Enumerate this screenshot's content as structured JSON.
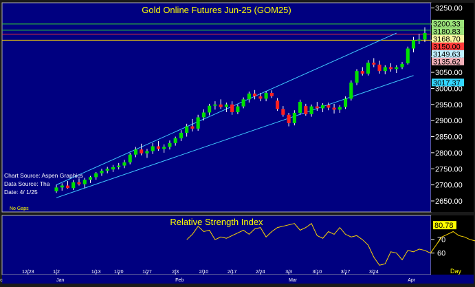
{
  "chart_data": {
    "type": "candlestick",
    "title": "Gold Online Futures Jun-25 (GOM25)",
    "source_lines": [
      "Chart Source: Aspen Graphics",
      "Data Source: Tha",
      "Date:   4/ 1/25"
    ],
    "gaps_label": "No Gaps",
    "period_label": "Day",
    "ylim": [
      2620,
      3262
    ],
    "y_ticks": [
      2650,
      2700,
      2750,
      2800,
      2850,
      2900,
      2950,
      3000,
      3050,
      3100,
      3150,
      3200,
      3250
    ],
    "y_tick_labels": [
      "2650.00",
      "2700.00",
      "2750.00",
      "2800.00",
      "2850.00",
      "2900.00",
      "2950.00",
      "3000.00",
      "3050.00",
      "3100.00",
      "3150.00",
      "3200.00",
      "3250.00"
    ],
    "x_date_labels": [
      "12/23",
      "1/2",
      "1/13",
      "1/20",
      "1/27",
      "2/3",
      "2/10",
      "2/17",
      "2/24",
      "3/3",
      "3/10",
      "3/17",
      "3/24"
    ],
    "x_month_labels": [
      "Dec",
      "Jan",
      "Feb",
      "Mar",
      "Apr"
    ],
    "price_labels": [
      {
        "text": "3200.33",
        "value": 3200.33,
        "bg": "#9be37a"
      },
      {
        "text": "3180.83",
        "value": 3180.83,
        "bg": "#9be37a"
      },
      {
        "text": "3168.70",
        "value": 3168.7,
        "bg": "#f5f5a0"
      },
      {
        "text": "3150.00",
        "value": 3150.0,
        "bg": "#ff3a3a"
      },
      {
        "text": "3149.63",
        "value": 3149.63,
        "bg": "#bfefff"
      },
      {
        "text": "3135.62",
        "value": 3135.62,
        "bg": "#f0b0b8"
      },
      {
        "text": "3017.37",
        "value": 3017.37,
        "bg": "#33d6ff"
      }
    ],
    "horizontal_lines": [
      {
        "value": 3200.33,
        "color": "#30d030"
      },
      {
        "value": 3180.83,
        "color": "#30d030"
      },
      {
        "value": 3168.7,
        "color": "#ff3030"
      },
      {
        "value": 3150.0,
        "color": "#ffd700"
      }
    ],
    "channel_upper": {
      "from": {
        "i": 0,
        "v": 2700
      },
      "to": {
        "i": 60,
        "v": 3172
      }
    },
    "channel_lower": {
      "from": {
        "i": 0,
        "v": 2660
      },
      "to": {
        "i": 63,
        "v": 3040
      }
    },
    "candles": [
      {
        "o": 2680,
        "h": 2700,
        "l": 2675,
        "c": 2692
      },
      {
        "o": 2692,
        "h": 2705,
        "l": 2682,
        "c": 2698
      },
      {
        "o": 2698,
        "h": 2712,
        "l": 2688,
        "c": 2690
      },
      {
        "o": 2690,
        "h": 2715,
        "l": 2684,
        "c": 2708
      },
      {
        "o": 2708,
        "h": 2720,
        "l": 2698,
        "c": 2702
      },
      {
        "o": 2702,
        "h": 2722,
        "l": 2690,
        "c": 2716
      },
      {
        "o": 2716,
        "h": 2728,
        "l": 2706,
        "c": 2724
      },
      {
        "o": 2724,
        "h": 2740,
        "l": 2716,
        "c": 2736
      },
      {
        "o": 2736,
        "h": 2750,
        "l": 2728,
        "c": 2744
      },
      {
        "o": 2744,
        "h": 2756,
        "l": 2736,
        "c": 2750
      },
      {
        "o": 2748,
        "h": 2762,
        "l": 2740,
        "c": 2755
      },
      {
        "o": 2755,
        "h": 2768,
        "l": 2748,
        "c": 2760
      },
      {
        "o": 2760,
        "h": 2778,
        "l": 2752,
        "c": 2770
      },
      {
        "o": 2770,
        "h": 2800,
        "l": 2764,
        "c": 2794
      },
      {
        "o": 2794,
        "h": 2818,
        "l": 2786,
        "c": 2810
      },
      {
        "o": 2810,
        "h": 2828,
        "l": 2792,
        "c": 2798
      },
      {
        "o": 2798,
        "h": 2812,
        "l": 2784,
        "c": 2805
      },
      {
        "o": 2805,
        "h": 2830,
        "l": 2796,
        "c": 2820
      },
      {
        "o": 2820,
        "h": 2836,
        "l": 2806,
        "c": 2812
      },
      {
        "o": 2812,
        "h": 2826,
        "l": 2800,
        "c": 2818
      },
      {
        "o": 2818,
        "h": 2838,
        "l": 2810,
        "c": 2830
      },
      {
        "o": 2830,
        "h": 2850,
        "l": 2822,
        "c": 2845
      },
      {
        "o": 2845,
        "h": 2870,
        "l": 2836,
        "c": 2862
      },
      {
        "o": 2862,
        "h": 2890,
        "l": 2850,
        "c": 2882
      },
      {
        "o": 2882,
        "h": 2905,
        "l": 2866,
        "c": 2875
      },
      {
        "o": 2875,
        "h": 2918,
        "l": 2868,
        "c": 2910
      },
      {
        "o": 2910,
        "h": 2935,
        "l": 2900,
        "c": 2925
      },
      {
        "o": 2925,
        "h": 2952,
        "l": 2916,
        "c": 2946
      },
      {
        "o": 2946,
        "h": 2960,
        "l": 2934,
        "c": 2950
      },
      {
        "o": 2950,
        "h": 2966,
        "l": 2936,
        "c": 2942
      },
      {
        "o": 2942,
        "h": 2956,
        "l": 2926,
        "c": 2950
      },
      {
        "o": 2950,
        "h": 2960,
        "l": 2918,
        "c": 2926
      },
      {
        "o": 2926,
        "h": 2950,
        "l": 2920,
        "c": 2944
      },
      {
        "o": 2944,
        "h": 2972,
        "l": 2938,
        "c": 2966
      },
      {
        "o": 2966,
        "h": 2990,
        "l": 2956,
        "c": 2984
      },
      {
        "o": 2984,
        "h": 2995,
        "l": 2966,
        "c": 2975
      },
      {
        "o": 2975,
        "h": 2986,
        "l": 2960,
        "c": 2968
      },
      {
        "o": 2968,
        "h": 2992,
        "l": 2960,
        "c": 2986
      },
      {
        "o": 2986,
        "h": 2994,
        "l": 2970,
        "c": 2976
      },
      {
        "o": 2962,
        "h": 2970,
        "l": 2930,
        "c": 2936
      },
      {
        "o": 2936,
        "h": 2945,
        "l": 2912,
        "c": 2918
      },
      {
        "o": 2918,
        "h": 2924,
        "l": 2882,
        "c": 2892
      },
      {
        "o": 2892,
        "h": 2932,
        "l": 2885,
        "c": 2924
      },
      {
        "o": 2924,
        "h": 2965,
        "l": 2918,
        "c": 2958
      },
      {
        "o": 2945,
        "h": 2952,
        "l": 2915,
        "c": 2920
      },
      {
        "o": 2920,
        "h": 2950,
        "l": 2912,
        "c": 2944
      },
      {
        "o": 2944,
        "h": 2958,
        "l": 2930,
        "c": 2938
      },
      {
        "o": 2938,
        "h": 2954,
        "l": 2926,
        "c": 2948
      },
      {
        "o": 2948,
        "h": 2956,
        "l": 2932,
        "c": 2940
      },
      {
        "o": 2940,
        "h": 2952,
        "l": 2922,
        "c": 2934
      },
      {
        "o": 2934,
        "h": 2948,
        "l": 2924,
        "c": 2942
      },
      {
        "o": 2942,
        "h": 2975,
        "l": 2936,
        "c": 2968
      },
      {
        "o": 2968,
        "h": 3025,
        "l": 2962,
        "c": 3018
      },
      {
        "o": 3018,
        "h": 3060,
        "l": 3010,
        "c": 3054
      },
      {
        "o": 3054,
        "h": 3066,
        "l": 3040,
        "c": 3046
      },
      {
        "o": 3046,
        "h": 3088,
        "l": 3040,
        "c": 3080
      },
      {
        "o": 3080,
        "h": 3094,
        "l": 3066,
        "c": 3074
      },
      {
        "o": 3074,
        "h": 3086,
        "l": 3046,
        "c": 3054
      },
      {
        "o": 3054,
        "h": 3072,
        "l": 3044,
        "c": 3066
      },
      {
        "o": 3066,
        "h": 3078,
        "l": 3052,
        "c": 3060
      },
      {
        "o": 3060,
        "h": 3072,
        "l": 3048,
        "c": 3066
      },
      {
        "o": 3066,
        "h": 3082,
        "l": 3060,
        "c": 3076
      },
      {
        "o": 3078,
        "h": 3130,
        "l": 3074,
        "c": 3124
      },
      {
        "o": 3124,
        "h": 3160,
        "l": 3112,
        "c": 3150
      },
      {
        "o": 3148,
        "h": 3170,
        "l": 3138,
        "c": 3152
      },
      {
        "o": 3152,
        "h": 3190,
        "l": 3144,
        "c": 3172
      }
    ],
    "rsi": {
      "title": "Relative Strength Index",
      "ylim": [
        45,
        87
      ],
      "ticks": [
        60,
        70
      ],
      "current_label": "80.78",
      "current_value": 80.78,
      "start_index": 23,
      "values": [
        70,
        74,
        80,
        76,
        77,
        70,
        72,
        71,
        73,
        75,
        77,
        74,
        78,
        79,
        72,
        76,
        79,
        80,
        81,
        82,
        77,
        79,
        82,
        73,
        71,
        76,
        74,
        79,
        74,
        72,
        73,
        70,
        66,
        57,
        51,
        52,
        61,
        60,
        55,
        62,
        61,
        63,
        62,
        60,
        66,
        72,
        74,
        76,
        73,
        72,
        70,
        69,
        70,
        73,
        79,
        81
      ]
    }
  }
}
